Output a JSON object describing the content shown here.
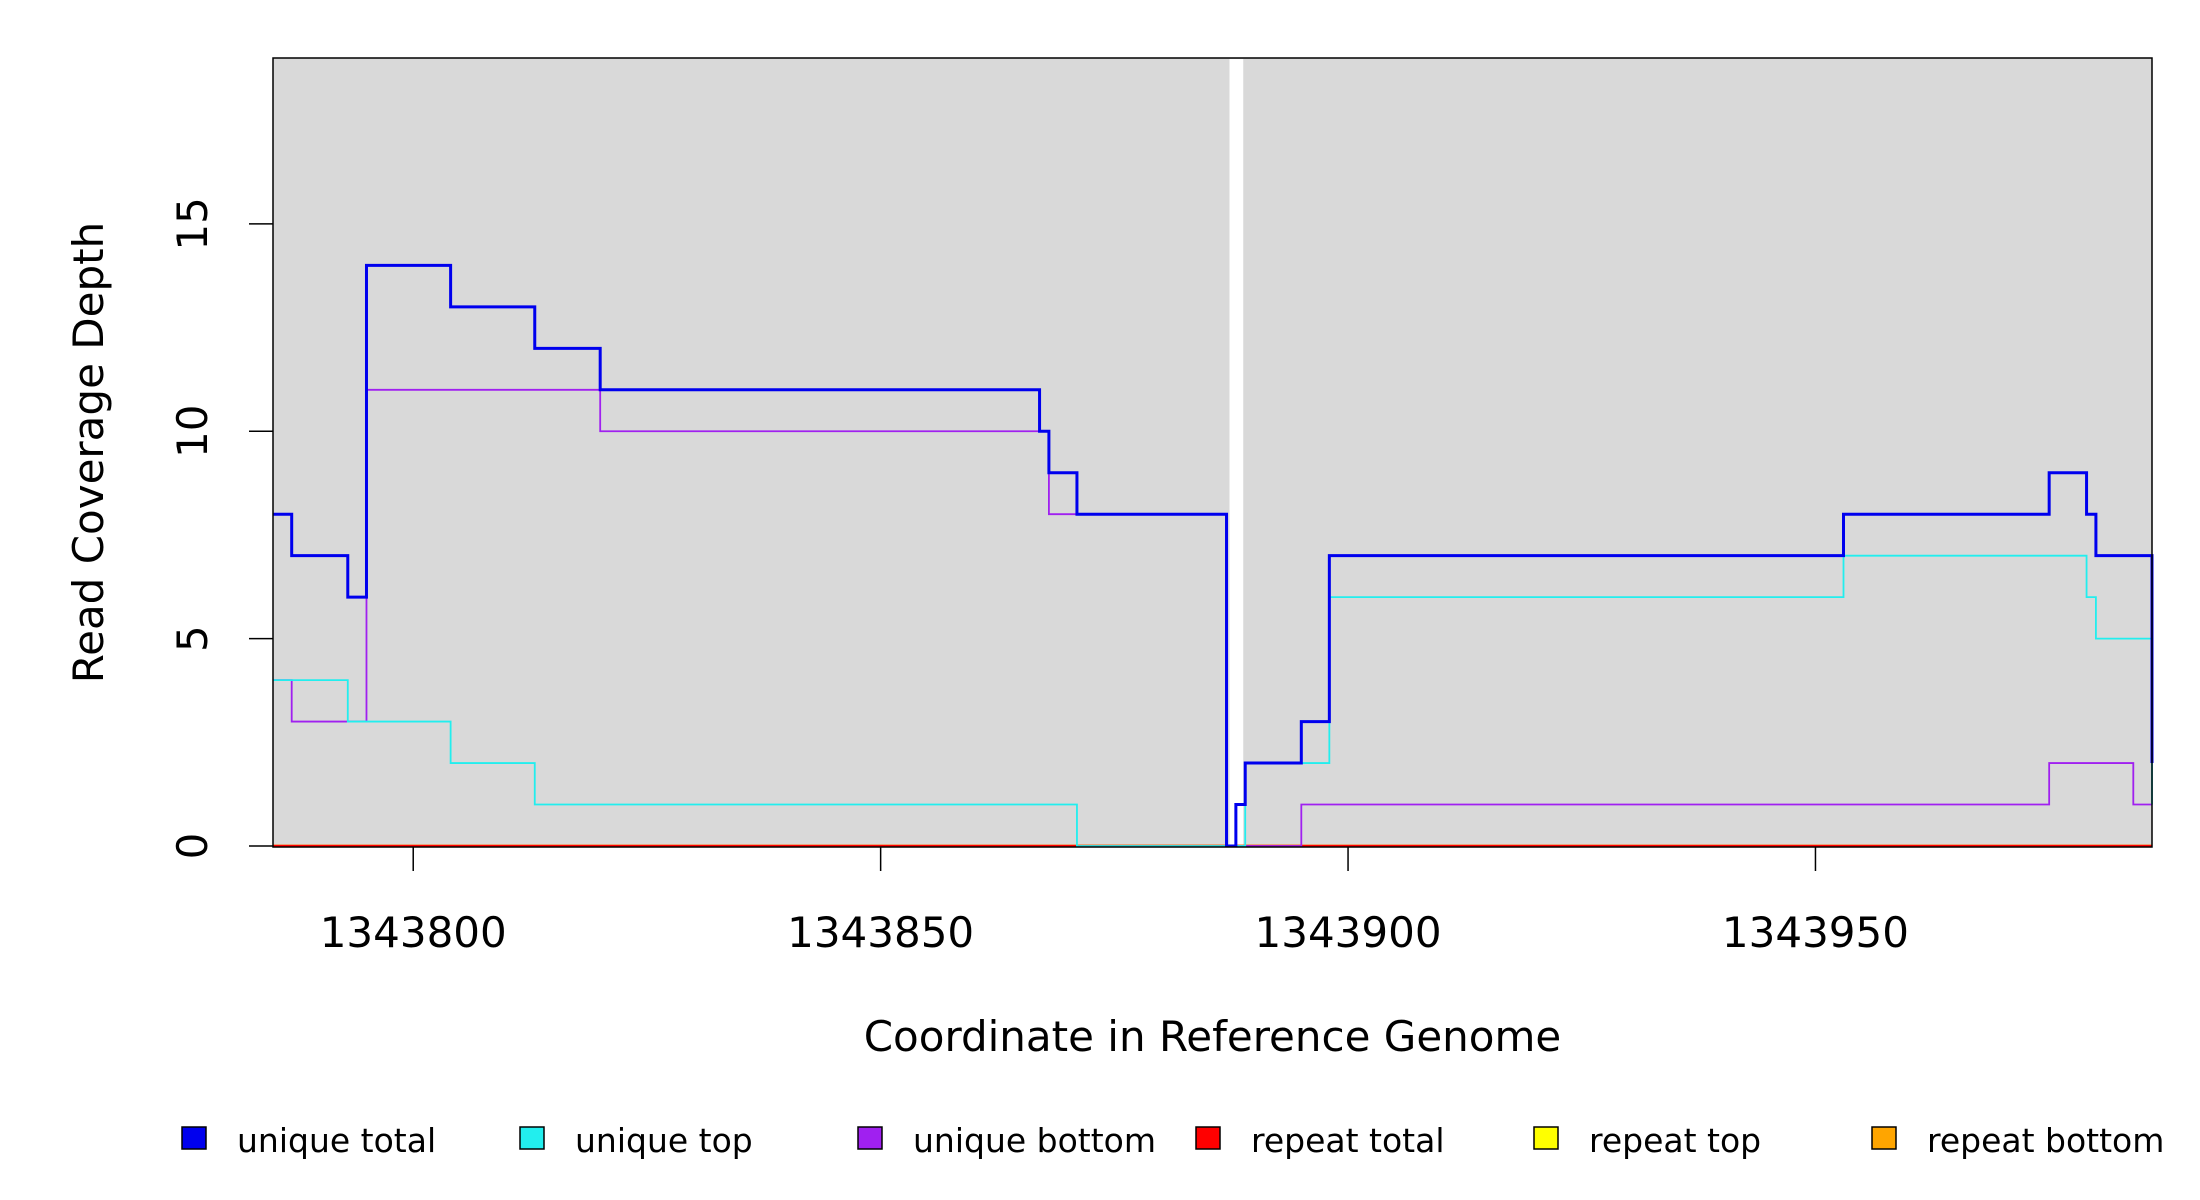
{
  "chart_data": {
    "type": "line",
    "xlabel": "Coordinate in Reference Genome",
    "ylabel": "Read Coverage Depth",
    "xlim": [
      1343785,
      1343986
    ],
    "ylim": [
      0,
      19
    ],
    "x_ticks": [
      1343800,
      1343850,
      1343900,
      1343950
    ],
    "x_tick_labels": [
      "1343800",
      "1343850",
      "1343900",
      "1343950"
    ],
    "y_ticks": [
      0,
      5,
      10,
      15
    ],
    "y_tick_labels": [
      "0",
      "5",
      "10",
      "15"
    ],
    "panel_background": "#d9d9d9",
    "gap": {
      "start": 1343887,
      "end": 1343889
    },
    "legend_position": "bottom",
    "series": [
      {
        "name": "unique total",
        "color": "#0000ee",
        "step": [
          [
            1343785,
            8
          ],
          [
            1343787,
            7
          ],
          [
            1343793,
            6
          ],
          [
            1343795,
            14
          ],
          [
            1343804,
            13
          ],
          [
            1343813,
            12
          ],
          [
            1343820,
            11
          ],
          [
            1343867,
            10
          ],
          [
            1343868,
            9
          ],
          [
            1343871,
            8
          ],
          [
            1343887,
            0
          ],
          [
            1343888,
            1
          ],
          [
            1343889,
            2
          ],
          [
            1343895,
            3
          ],
          [
            1343898,
            7
          ],
          [
            1343953,
            8
          ],
          [
            1343975,
            9
          ],
          [
            1343979,
            8
          ],
          [
            1343980,
            7
          ],
          [
            1343986,
            6
          ],
          [
            1343986,
            2
          ]
        ]
      },
      {
        "name": "unique top",
        "color": "#22eeee",
        "step": [
          [
            1343785,
            4
          ],
          [
            1343793,
            3
          ],
          [
            1343804,
            2
          ],
          [
            1343813,
            1
          ],
          [
            1343871,
            0
          ],
          [
            1343889,
            2
          ],
          [
            1343898,
            6
          ],
          [
            1343953,
            7
          ],
          [
            1343979,
            6
          ],
          [
            1343980,
            5
          ],
          [
            1343986,
            1
          ]
        ]
      },
      {
        "name": "unique bottom",
        "color": "#a020f0",
        "step": [
          [
            1343785,
            4
          ],
          [
            1343787,
            3
          ],
          [
            1343795,
            11
          ],
          [
            1343820,
            10
          ],
          [
            1343868,
            8
          ],
          [
            1343887,
            0
          ],
          [
            1343895,
            1
          ],
          [
            1343975,
            2
          ],
          [
            1343984,
            1
          ],
          [
            1343986,
            1
          ]
        ]
      },
      {
        "name": "repeat total",
        "color": "#ff0000",
        "step": [
          [
            1343785,
            0
          ],
          [
            1343986,
            0
          ]
        ]
      },
      {
        "name": "repeat top",
        "color": "#ffff00",
        "step": [
          [
            1343785,
            0
          ],
          [
            1343986,
            0
          ]
        ]
      },
      {
        "name": "repeat bottom",
        "color": "#ffa500",
        "step": [
          [
            1343785,
            0
          ],
          [
            1343986,
            0
          ]
        ]
      }
    ]
  }
}
